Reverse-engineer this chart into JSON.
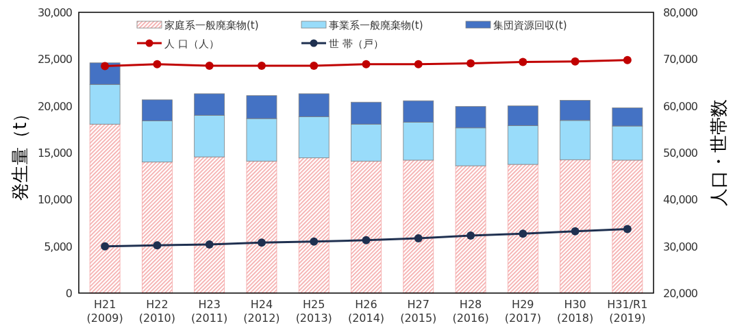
{
  "chart_data": {
    "type": "bar",
    "stacked": true,
    "ylabel": "発生量（t）",
    "y2label": "人口・世帯数",
    "categories": [
      "H21\n(2009)",
      "H22\n(2010)",
      "H23\n(2011)",
      "H24\n(2012)",
      "H25\n(2013)",
      "H26\n(2014)",
      "H27\n(2015)",
      "H28\n(2016)",
      "H29\n(2017)",
      "H30\n(2018)",
      "H31/R1\n(2019)"
    ],
    "series": [
      {
        "name": "家庭系一般廃棄物(t)",
        "color": "#f4a6a6",
        "values": [
          18050,
          14000,
          14550,
          14100,
          14450,
          14100,
          14200,
          13600,
          13750,
          14250,
          14200
        ]
      },
      {
        "name": "事業系一般廃棄物(t)",
        "color": "#99dcfa",
        "values": [
          4250,
          4400,
          4450,
          4550,
          4400,
          3950,
          4050,
          4050,
          4150,
          4200,
          3650
        ]
      },
      {
        "name": "集団資源回収(t)",
        "color": "#4472c4",
        "values": [
          2300,
          2250,
          2300,
          2450,
          2450,
          2350,
          2300,
          2300,
          2100,
          2150,
          1950
        ]
      },
      {
        "name": "人 口（人）",
        "type": "line",
        "axis": "y2",
        "color": "#c00000",
        "values": [
          68500,
          68900,
          68600,
          68600,
          68600,
          68900,
          68900,
          69100,
          69400,
          69500,
          69800
        ]
      },
      {
        "name": "世 帯（戸）",
        "type": "line",
        "axis": "y2",
        "color": "#1f3050",
        "values": [
          30000,
          30200,
          30400,
          30800,
          31000,
          31300,
          31700,
          32300,
          32700,
          33200,
          33700
        ]
      }
    ],
    "ylim": [
      0,
      30000
    ],
    "yticks": [
      0,
      {
        "value": 5000,
        "label": "5,000"
      },
      {
        "value": 10000,
        "label": "10,000"
      },
      {
        "value": 15000,
        "label": "15,000"
      },
      {
        "value": 20000,
        "label": "20,000"
      },
      {
        "value": 25000,
        "label": "25,000"
      },
      {
        "value": 30000,
        "label": "30,000"
      }
    ],
    "y2lim": [
      20000,
      80000
    ],
    "y2ticks": [
      {
        "value": 20000,
        "label": "20,000"
      },
      {
        "value": 30000,
        "label": "30,000"
      },
      {
        "value": 40000,
        "label": "40,000"
      },
      {
        "value": 50000,
        "label": "50,000"
      },
      {
        "value": 60000,
        "label": "60,000"
      },
      {
        "value": 70000,
        "label": "70,000"
      },
      {
        "value": 80000,
        "label": "80,000"
      }
    ],
    "marker": "circle",
    "legend": "top",
    "grid": false
  }
}
